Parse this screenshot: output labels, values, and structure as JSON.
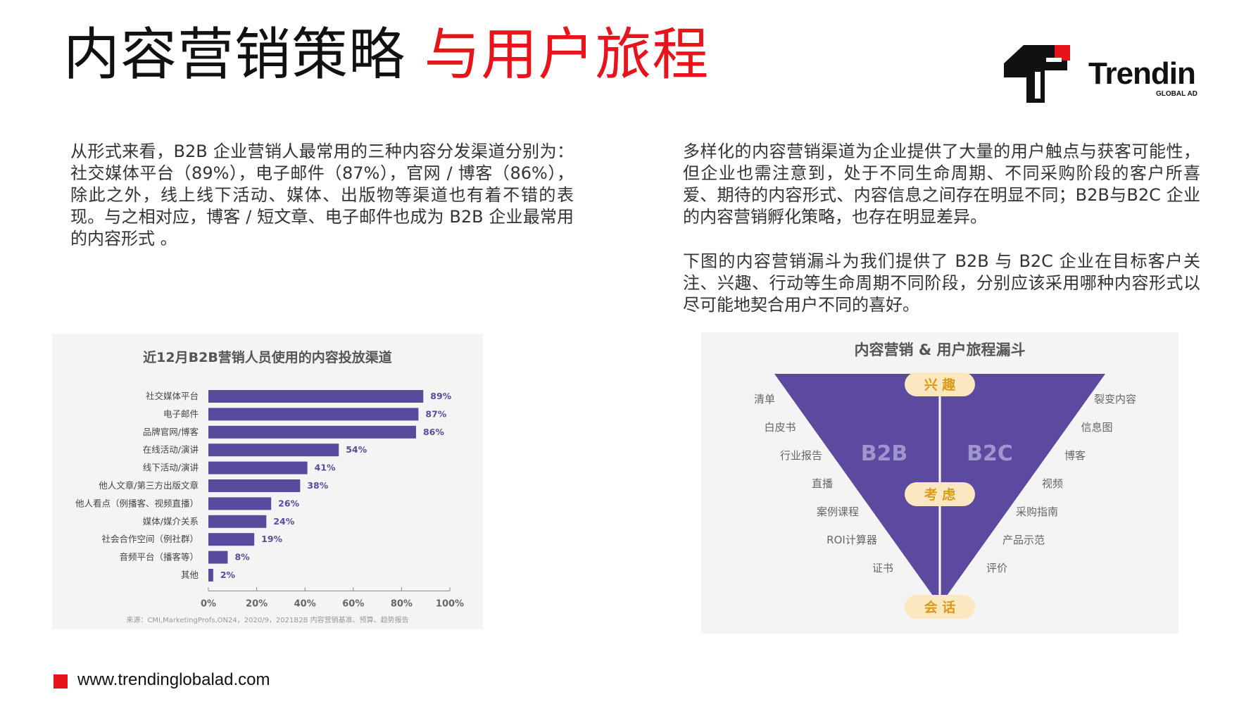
{
  "header": {
    "title_black": "内容营销策略",
    "title_red": "与用户旅程"
  },
  "logo": {
    "name": "Trendin",
    "sub": "GLOBAL AD"
  },
  "text": {
    "left": "从形式来看，B2B 企业营销人最常用的三种内容分发渠道分别为：社交媒体平台（89%），电子邮件（87%），官网 / 博客（86%），除此之外，线上线下活动、媒体、出版物等渠道也有着不错的表现。与之相对应，博客 / 短文章、电子邮件也成为 B2B 企业最常用的内容形式 。",
    "right1": "多样化的内容营销渠道为企业提供了大量的用户触点与获客可能性，但企业也需注意到，处于不同生命周期、不同采购阶段的客户所喜爱、期待的内容形式、内容信息之间存在明显不同；B2B与B2C 企业的内容营销孵化策略，也存在明显差异。",
    "right2": "下图的内容营销漏斗为我们提供了 B2B 与 B2C 企业在目标客户关注、兴趣、行动等生命周期不同阶段，分别应该采用哪种内容形式以尽可能地契合用户不同的喜好。"
  },
  "chart_data": {
    "type": "bar",
    "orientation": "horizontal",
    "title": "近12月B2B营销人员使用的内容投放渠道",
    "categories": [
      "社交媒体平台",
      "电子邮件",
      "品牌官网/博客",
      "在线活动/演讲",
      "线下活动/演讲",
      "他人文章/第三方出版文章",
      "他人看点（例播客、视频直播）",
      "媒体/媒介关系",
      "社会合作空间（例社群）",
      "音频平台（播客等）",
      "其他"
    ],
    "values": [
      89,
      87,
      86,
      54,
      41,
      38,
      26,
      24,
      19,
      8,
      2
    ],
    "value_suffix": "%",
    "xlim": [
      0,
      100
    ],
    "xticks": [
      "0%",
      "20%",
      "40%",
      "60%",
      "80%",
      "100%"
    ],
    "grid": false,
    "source": "来源：CMI,MarketingProfs,ON24，2020/9，2021B2B 内容营销基准、预算、趋势报告",
    "bar_color": "#5a4a9e",
    "label_color": "#5a4a9e"
  },
  "funnel": {
    "title": "内容营销 & 用户旅程漏斗",
    "stages": [
      "兴 趣",
      "考 虑",
      "会 话"
    ],
    "sides": [
      "B2B",
      "B2C"
    ],
    "left_items": [
      "清单",
      "白皮书",
      "行业报告",
      "直播",
      "案例课程",
      "ROI计算器",
      "证书"
    ],
    "right_items": [
      "裂变内容",
      "信息图",
      "博客",
      "视频",
      "采购指南",
      "产品示范",
      "评价"
    ],
    "fill_color": "#5b4a9f",
    "stage_color": "#fbe7c0",
    "stage_text_color": "#d99a1a"
  },
  "footer": {
    "url": "www.trendinglobalad.com"
  }
}
